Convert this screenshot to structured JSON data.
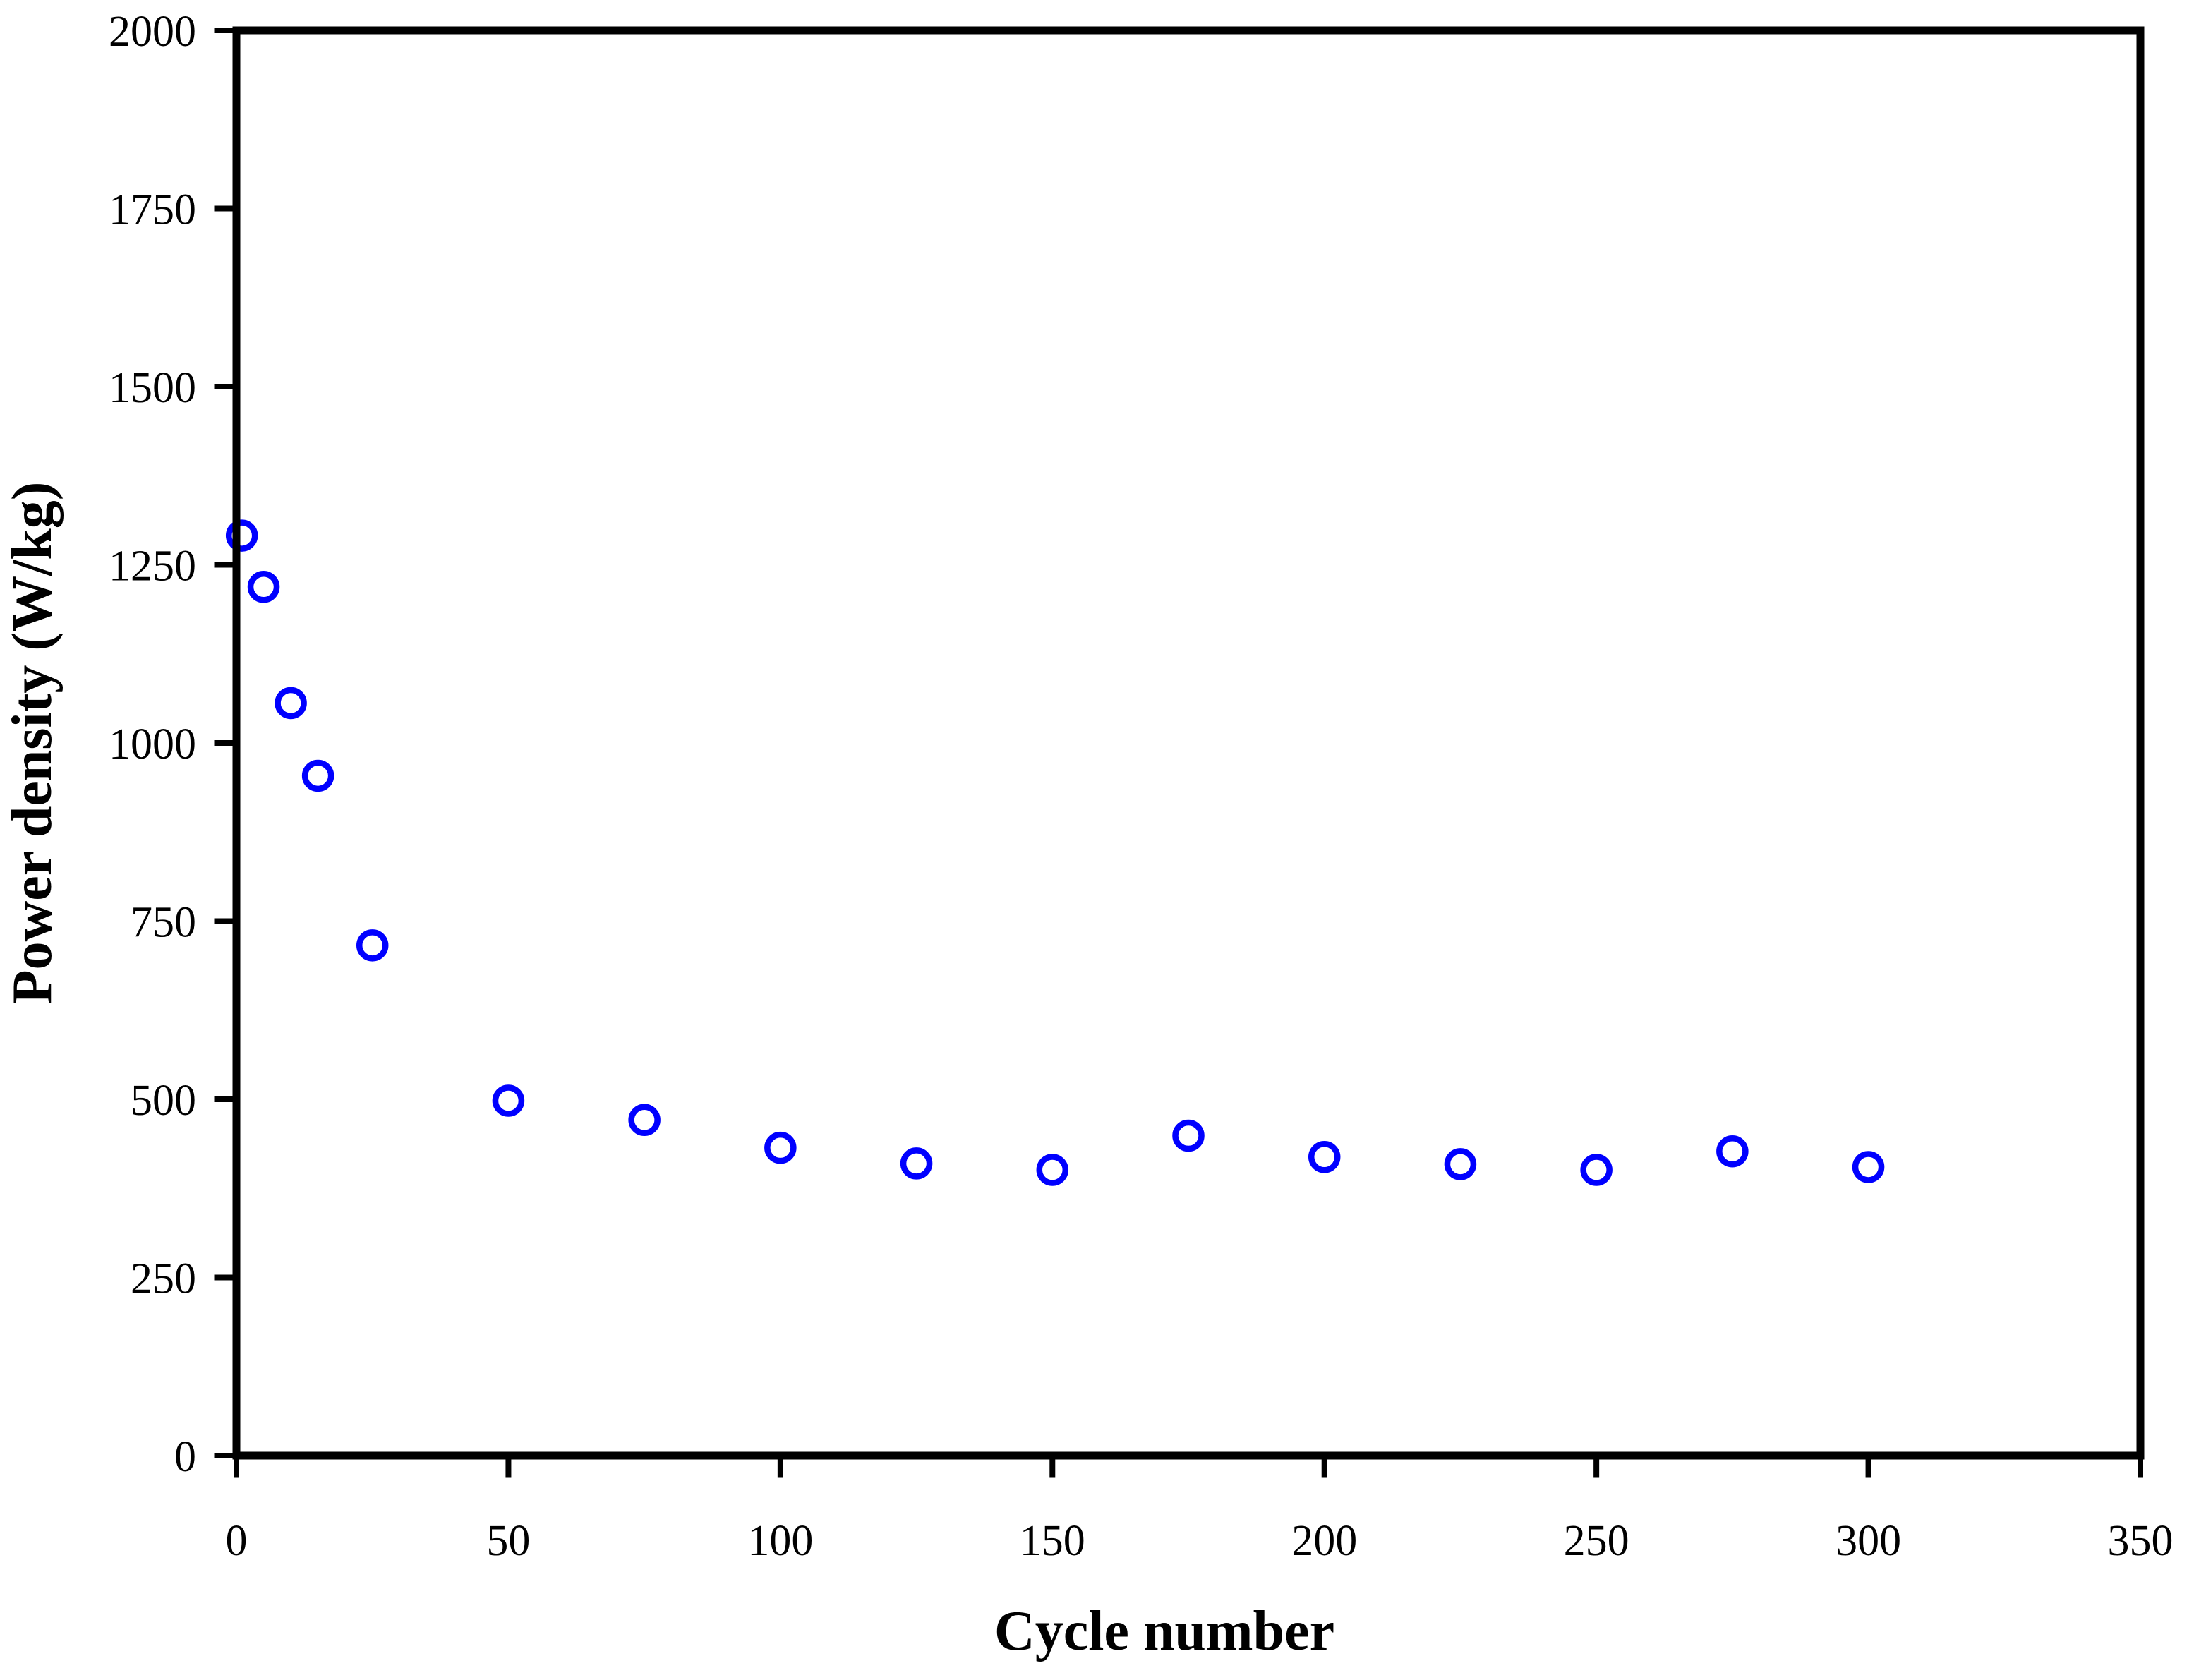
{
  "figure": {
    "background_color": "#ffffff",
    "axis_color": "#000000",
    "marker_color": "#0000ff",
    "marker_style": "open-circle"
  },
  "chart_data": {
    "type": "scatter",
    "title": "",
    "xlabel": "Cycle number",
    "ylabel": "Power density (W/kg)",
    "xlim": [
      0,
      350
    ],
    "ylim": [
      0,
      2000
    ],
    "x_ticks": [
      0,
      50,
      100,
      150,
      200,
      250,
      300,
      350
    ],
    "y_ticks": [
      0,
      250,
      500,
      750,
      1000,
      1250,
      1500,
      1750,
      2000
    ],
    "grid": false,
    "legend": "none",
    "frame": "full-box",
    "series": [
      {
        "name": "Power density",
        "marker": "open-circle",
        "color": "#0000ff",
        "points": [
          {
            "x": 1,
            "y": 1291
          },
          {
            "x": 5,
            "y": 1219
          },
          {
            "x": 10,
            "y": 1056
          },
          {
            "x": 15,
            "y": 954
          },
          {
            "x": 25,
            "y": 716
          },
          {
            "x": 50,
            "y": 498
          },
          {
            "x": 75,
            "y": 471
          },
          {
            "x": 100,
            "y": 432
          },
          {
            "x": 125,
            "y": 410
          },
          {
            "x": 150,
            "y": 401
          },
          {
            "x": 175,
            "y": 449
          },
          {
            "x": 200,
            "y": 419
          },
          {
            "x": 225,
            "y": 409
          },
          {
            "x": 250,
            "y": 401
          },
          {
            "x": 275,
            "y": 427
          },
          {
            "x": 300,
            "y": 405
          }
        ]
      }
    ]
  }
}
